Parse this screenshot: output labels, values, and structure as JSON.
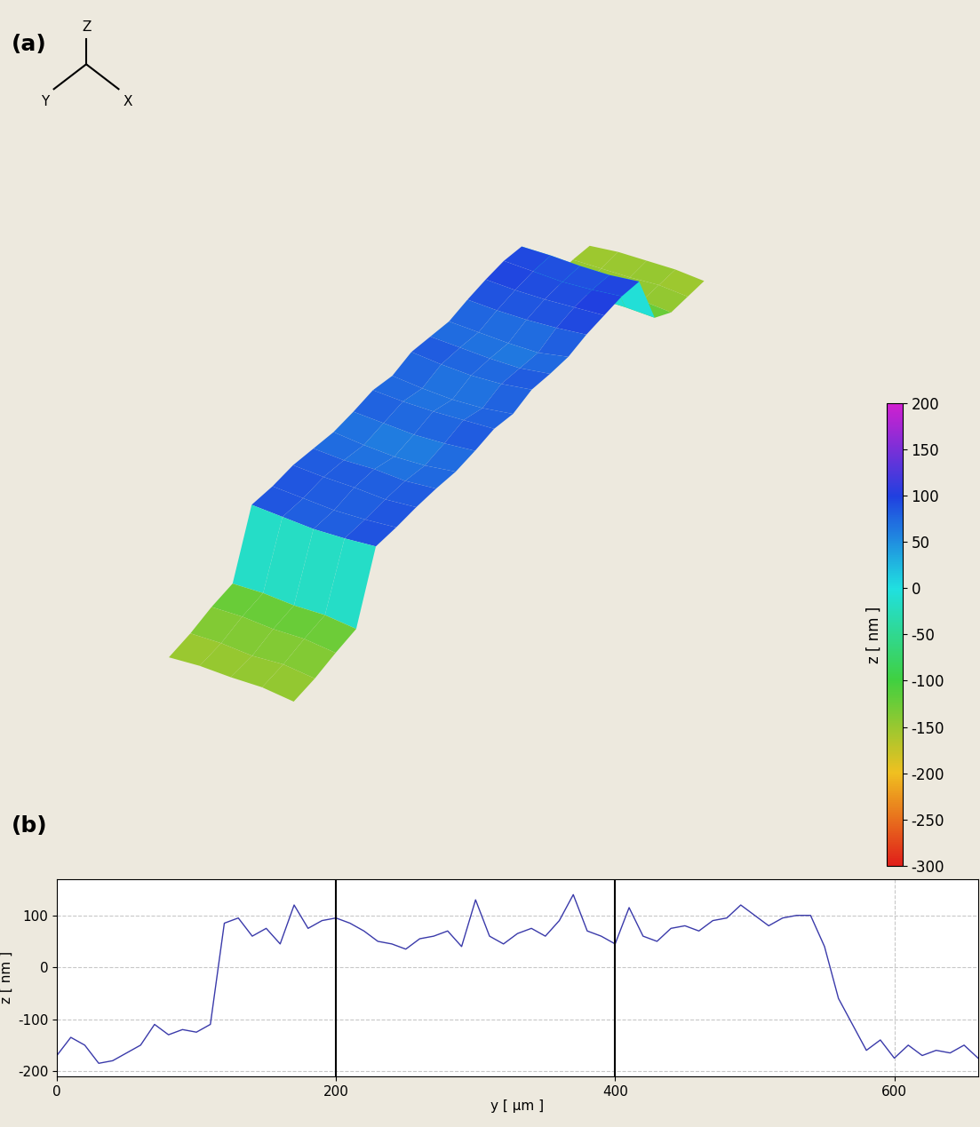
{
  "chart_data": [
    {
      "type": "surface",
      "panel_label": "(a)",
      "axes_labels": [
        "Z",
        "Y",
        "X"
      ],
      "colorbar_label": "z [ nm ]",
      "x": [
        0,
        25,
        50,
        75,
        100
      ],
      "y": [
        0,
        30,
        60,
        90,
        120,
        150,
        180,
        210,
        240,
        270,
        300,
        330,
        360,
        390,
        420,
        450,
        480,
        510,
        540,
        570,
        600,
        630,
        660
      ],
      "cells": [
        [
          -160,
          -150,
          -130,
          -120,
          90,
          85,
          90,
          80,
          70,
          75,
          85,
          70,
          90,
          80,
          70,
          85,
          95,
          100,
          90,
          -100,
          -150,
          -150,
          -160
        ],
        [
          -150,
          -145,
          -125,
          -115,
          85,
          80,
          85,
          75,
          60,
          70,
          80,
          60,
          80,
          75,
          65,
          80,
          90,
          95,
          90,
          -95,
          -145,
          -150,
          -150
        ],
        [
          -150,
          -150,
          -130,
          -120,
          80,
          75,
          85,
          80,
          55,
          65,
          80,
          55,
          75,
          70,
          60,
          80,
          90,
          90,
          85,
          -100,
          -150,
          -150,
          -150
        ],
        [
          -145,
          -140,
          -125,
          -115,
          85,
          80,
          80,
          75,
          60,
          70,
          85,
          60,
          80,
          70,
          60,
          85,
          95,
          95,
          85,
          -100,
          -140,
          -145,
          -150
        ],
        [
          -155,
          -150,
          -135,
          -125,
          95,
          90,
          90,
          85,
          75,
          80,
          90,
          75,
          95,
          85,
          80,
          95,
          100,
          105,
          95,
          -105,
          -150,
          -155,
          -160
        ]
      ],
      "clim": [
        -300,
        200
      ],
      "cticks": [
        -300,
        -250,
        -200,
        -150,
        -100,
        -50,
        0,
        50,
        100,
        150,
        200
      ]
    },
    {
      "type": "line",
      "panel_label": "(b)",
      "x_label": "y [ µm ]",
      "y_label": "z [ nm ]",
      "x": [
        0,
        10,
        20,
        30,
        40,
        50,
        60,
        70,
        80,
        90,
        100,
        110,
        120,
        130,
        140,
        150,
        160,
        170,
        180,
        190,
        200,
        210,
        220,
        230,
        240,
        250,
        260,
        270,
        280,
        290,
        300,
        310,
        320,
        330,
        340,
        350,
        360,
        370,
        380,
        390,
        400,
        410,
        420,
        430,
        440,
        450,
        460,
        470,
        480,
        490,
        500,
        510,
        520,
        530,
        540,
        550,
        560,
        570,
        580,
        590,
        600,
        610,
        620,
        630,
        640,
        650,
        660
      ],
      "values": [
        -170,
        -135,
        -150,
        -185,
        -180,
        -165,
        -150,
        -110,
        -130,
        -120,
        -125,
        -110,
        85,
        95,
        60,
        75,
        45,
        120,
        75,
        90,
        95,
        85,
        70,
        50,
        45,
        35,
        55,
        60,
        70,
        40,
        130,
        60,
        45,
        65,
        75,
        60,
        90,
        140,
        70,
        60,
        45,
        115,
        60,
        50,
        75,
        80,
        70,
        90,
        95,
        120,
        100,
        80,
        95,
        100,
        100,
        40,
        -60,
        -110,
        -160,
        -140,
        -175,
        -150,
        -170,
        -160,
        -165,
        -150,
        -175
      ],
      "color": "#3a3aaa",
      "vertical_lines": [
        200,
        400
      ],
      "xlim": [
        0,
        660
      ],
      "ylim": [
        -210,
        170
      ],
      "xticks": [
        0,
        200,
        400,
        600
      ],
      "yticks": [
        -200,
        -100,
        0,
        100
      ],
      "grid": true
    }
  ]
}
